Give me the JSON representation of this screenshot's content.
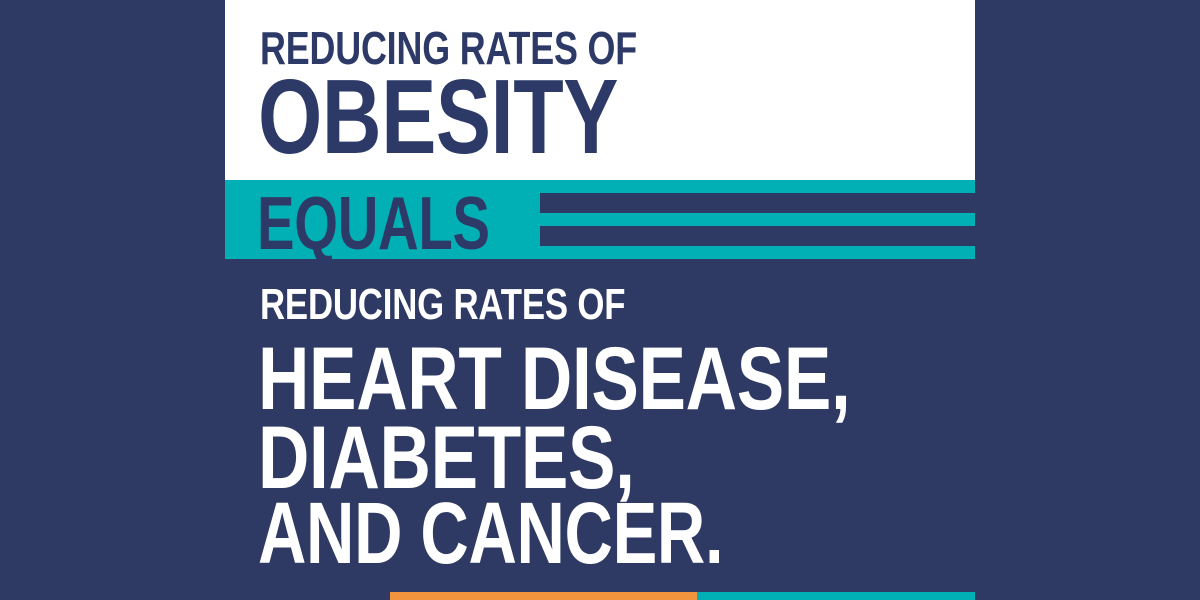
{
  "poster": {
    "top_panel": {
      "kicker": "REDUCING RATES OF",
      "headline": "OBESITY"
    },
    "equals_band": {
      "label": "EQUALS"
    },
    "bottom_panel": {
      "kicker": "REDUCING RATES OF",
      "headline_line_1": "HEART DISEASE,",
      "headline_line_2": "DIABETES,",
      "headline_line_3": "AND CANCER."
    },
    "colors": {
      "background_navy": "#2E3A63",
      "text_navy": "#2D3A68",
      "teal": "#00B0B5",
      "orange": "#F2943D",
      "white": "#FFFFFF"
    }
  }
}
